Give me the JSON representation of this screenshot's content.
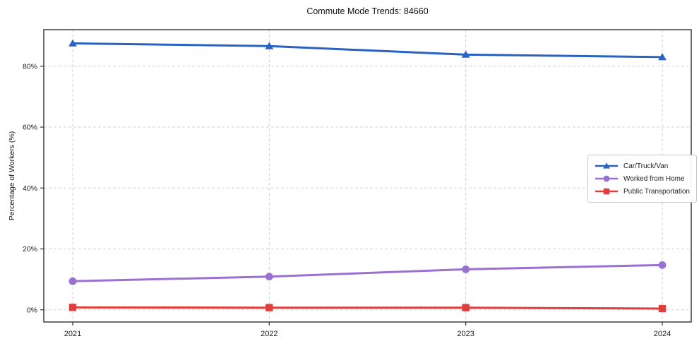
{
  "chart_data": {
    "type": "line",
    "title": "Commute Mode Trends: 84660",
    "ylabel": "Percentage of Workers (%)",
    "xlabel": "",
    "categories": [
      "2021",
      "2022",
      "2023",
      "2024"
    ],
    "series": [
      {
        "name": "Car/Truck/Van",
        "color": "#2a62c2",
        "marker": "triangle",
        "values": [
          87.5,
          86.6,
          83.8,
          83.0
        ]
      },
      {
        "name": "Worked from Home",
        "color": "#9a70d0",
        "marker": "circle",
        "values": [
          9.4,
          10.9,
          13.3,
          14.7
        ]
      },
      {
        "name": "Public Transportation",
        "color": "#e23d3d",
        "marker": "square",
        "values": [
          0.8,
          0.7,
          0.7,
          0.4
        ]
      }
    ],
    "ylim": [
      -4,
      92
    ],
    "yticks": [
      {
        "value": 0,
        "label": "0%"
      },
      {
        "value": 20,
        "label": "20%"
      },
      {
        "value": 40,
        "label": "40%"
      },
      {
        "value": 60,
        "label": "60%"
      },
      {
        "value": 80,
        "label": "80%"
      }
    ],
    "grid": "dashed",
    "legend_position": "center-right",
    "colors": {
      "grid": "#d3d3d3",
      "spine": "#1f1f1f",
      "tick": "#333333",
      "text": "#1a1a1a"
    }
  }
}
